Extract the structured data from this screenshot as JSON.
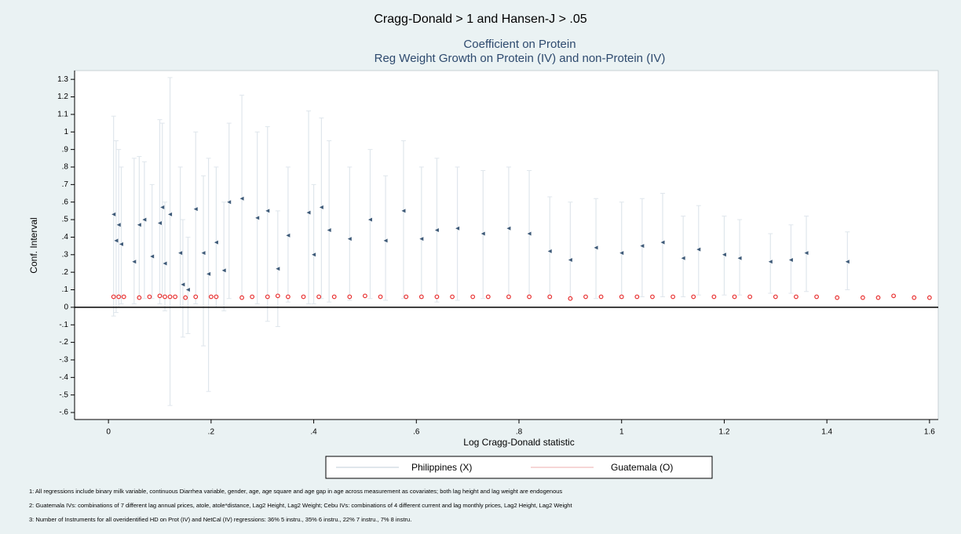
{
  "chart_data": {
    "type": "scatter",
    "title": "Cragg-Donald > 1 and Hansen-J > .05",
    "subtitle": [
      "Coefficient on Protein",
      "Reg Weight Growth on Protein (IV) and non-Protein (IV)"
    ],
    "x_label": "Log Cragg-Donald statistic",
    "y_label": "Conf. Interval",
    "xlim": [
      -0.066,
      1.617
    ],
    "ylim": [
      -0.64,
      1.35
    ],
    "xticks": [
      0,
      {
        "value": 0.2,
        "label": ".2"
      },
      {
        "value": 0.4,
        "label": ".4"
      },
      {
        "value": 0.6,
        "label": ".6"
      },
      {
        "value": 0.8,
        "label": ".8"
      },
      1,
      1.2,
      1.4,
      1.6
    ],
    "yticks": [
      1.3,
      1.2,
      1.1,
      1,
      {
        "value": 0.9,
        "label": ".9"
      },
      {
        "value": 0.8,
        "label": ".8"
      },
      {
        "value": 0.7,
        "label": ".7"
      },
      {
        "value": 0.6,
        "label": ".6"
      },
      {
        "value": 0.5,
        "label": ".5"
      },
      {
        "value": 0.4,
        "label": ".4"
      },
      {
        "value": 0.3,
        "label": ".3"
      },
      {
        "value": 0.2,
        "label": ".2"
      },
      {
        "value": 0.1,
        "label": ".1"
      },
      0,
      {
        "value": -0.1,
        "label": "-.1"
      },
      {
        "value": -0.2,
        "label": "-.2"
      },
      {
        "value": -0.3,
        "label": "-.3"
      },
      {
        "value": -0.4,
        "label": "-.4"
      },
      {
        "value": -0.5,
        "label": "-.5"
      },
      {
        "value": -0.6,
        "label": "-.6"
      }
    ],
    "yline": 0,
    "grid": false,
    "series": [
      {
        "name": "Philippines (X)",
        "color": "#3e5a78",
        "bar_color": "#dfe6ec",
        "x": [
          0.01,
          0.015,
          0.02,
          0.025,
          0.05,
          0.06,
          0.07,
          0.085,
          0.1,
          0.105,
          0.11,
          0.12,
          0.14,
          0.145,
          0.155,
          0.17,
          0.185,
          0.195,
          0.21,
          0.225,
          0.235,
          0.26,
          0.29,
          0.31,
          0.33,
          0.35,
          0.39,
          0.4,
          0.415,
          0.43,
          0.47,
          0.51,
          0.54,
          0.575,
          0.61,
          0.64,
          0.68,
          0.73,
          0.78,
          0.82,
          0.86,
          0.9,
          0.95,
          1.0,
          1.04,
          1.08,
          1.12,
          1.15,
          1.2,
          1.23,
          1.29,
          1.33,
          1.36,
          1.44
        ],
        "values": [
          0.53,
          0.38,
          0.47,
          0.36,
          0.26,
          0.47,
          0.5,
          0.29,
          0.48,
          0.57,
          0.25,
          0.53,
          0.31,
          0.13,
          0.1,
          0.56,
          0.31,
          0.19,
          0.37,
          0.21,
          0.6,
          0.62,
          0.51,
          0.55,
          0.22,
          0.41,
          0.54,
          0.3,
          0.57,
          0.44,
          0.39,
          0.5,
          0.38,
          0.55,
          0.39,
          0.44,
          0.45,
          0.42,
          0.45,
          0.42,
          0.32,
          0.27,
          0.34,
          0.31,
          0.35,
          0.37,
          0.28,
          0.33,
          0.3,
          0.28,
          0.26,
          0.27,
          0.31,
          0.26
        ],
        "low": [
          -0.05,
          -0.03,
          0,
          0.02,
          0.02,
          0.05,
          0.05,
          0.05,
          0.02,
          0.06,
          -0.02,
          -0.56,
          0,
          -0.17,
          -0.15,
          0.02,
          -0.22,
          -0.48,
          0,
          -0.02,
          0.05,
          0.05,
          0.02,
          -0.08,
          -0.11,
          0.03,
          0.02,
          0.02,
          0.05,
          0.03,
          0.04,
          0.05,
          0.04,
          0.05,
          0.05,
          0.03,
          0.04,
          0.05,
          0.05,
          0.06,
          0.05,
          0.05,
          0.05,
          0.05,
          0.06,
          0.06,
          0.06,
          0.07,
          0.07,
          0.07,
          0.08,
          0.08,
          0.09,
          0.1
        ],
        "high": [
          1.09,
          0.95,
          0.9,
          0.8,
          0.85,
          0.86,
          0.83,
          0.7,
          1.07,
          1.05,
          0.6,
          1.31,
          0.8,
          0.5,
          0.4,
          1.0,
          0.75,
          0.85,
          0.8,
          0.6,
          1.05,
          1.21,
          1.0,
          1.03,
          0.55,
          0.8,
          1.12,
          0.7,
          1.08,
          0.95,
          0.8,
          0.9,
          0.75,
          0.95,
          0.8,
          0.85,
          0.8,
          0.78,
          0.8,
          0.78,
          0.63,
          0.6,
          0.62,
          0.6,
          0.62,
          0.65,
          0.52,
          0.58,
          0.52,
          0.5,
          0.42,
          0.47,
          0.52,
          0.43
        ]
      },
      {
        "name": "Guatemala (O)",
        "color": "#e83030",
        "bar_color": "#f6d6d6",
        "x": [
          0.01,
          0.02,
          0.03,
          0.06,
          0.08,
          0.1,
          0.11,
          0.12,
          0.13,
          0.15,
          0.17,
          0.2,
          0.21,
          0.26,
          0.28,
          0.31,
          0.33,
          0.35,
          0.38,
          0.41,
          0.44,
          0.47,
          0.5,
          0.53,
          0.58,
          0.61,
          0.64,
          0.67,
          0.71,
          0.74,
          0.78,
          0.82,
          0.86,
          0.9,
          0.93,
          0.96,
          1.0,
          1.03,
          1.06,
          1.1,
          1.14,
          1.18,
          1.22,
          1.25,
          1.3,
          1.34,
          1.38,
          1.42,
          1.47,
          1.5,
          1.53,
          1.57,
          1.6
        ],
        "values": [
          0.06,
          0.06,
          0.06,
          0.055,
          0.06,
          0.065,
          0.06,
          0.06,
          0.06,
          0.055,
          0.06,
          0.06,
          0.06,
          0.055,
          0.06,
          0.06,
          0.065,
          0.06,
          0.06,
          0.06,
          0.06,
          0.06,
          0.065,
          0.06,
          0.06,
          0.06,
          0.06,
          0.06,
          0.06,
          0.06,
          0.06,
          0.06,
          0.06,
          0.05,
          0.06,
          0.06,
          0.06,
          0.06,
          0.06,
          0.06,
          0.06,
          0.06,
          0.06,
          0.06,
          0.06,
          0.06,
          0.06,
          0.055,
          0.055,
          0.055,
          0.065,
          0.055,
          0.055
        ]
      }
    ],
    "notes": [
      "1: All regressions include binary milk variable, continuous Diarrhea variable, gender, age, age square and age gap in age across measurement as covariates; both lag height and lag weight are endogenous",
      "2: Guatemala IVs: combinations of 7 different lag annual prices, atole, atole*distance, Lag2 Height, Lag2 Weight; Cebu IVs: combinations of 4 different current and lag monthly prices, Lag2 Height, Lag2 Weight",
      "3: Number of Instruments for all overidentified HD on Prot (IV) and NetCal (IV) regressions: 36% 5 instru., 35% 6 instru., 22% 7 instru., 7% 8 instru."
    ]
  }
}
